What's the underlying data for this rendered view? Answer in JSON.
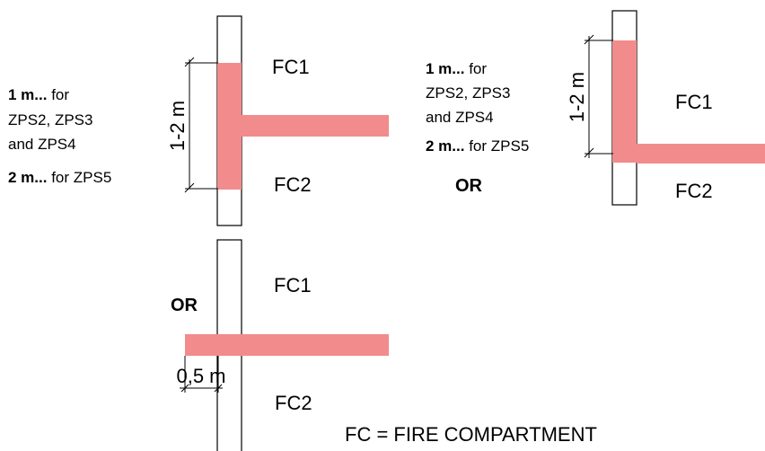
{
  "colors": {
    "fire_strip": "#f28b8b",
    "line": "#000000",
    "background": "#ffffff"
  },
  "diagram1": {
    "fc_top": "FC1",
    "fc_bottom": "FC2",
    "dimension": "1-2 m",
    "note_line1_bold": "1 m...",
    "note_line1_rest": " for",
    "note_line2": "ZPS2, ZPS3",
    "note_line3": "and ZPS4",
    "note_line4_bold": "2 m...",
    "note_line4_rest": " for ZPS5"
  },
  "diagram2": {
    "fc_top": "FC1",
    "fc_bottom": "FC2",
    "dimension": "1-2 m",
    "note_line1_bold": "1 m...",
    "note_line1_rest": " for",
    "note_line2": "ZPS2, ZPS3",
    "note_line3": "and ZPS4",
    "note_line4_bold": "2 m...",
    "note_line4_rest": " for ZPS5",
    "or_label": "OR"
  },
  "diagram3": {
    "fc_top": "FC1",
    "fc_bottom": "FC2",
    "or_label": "OR",
    "dimension": "0,5 m"
  },
  "legend": "FC = FIRE COMPARTMENT"
}
